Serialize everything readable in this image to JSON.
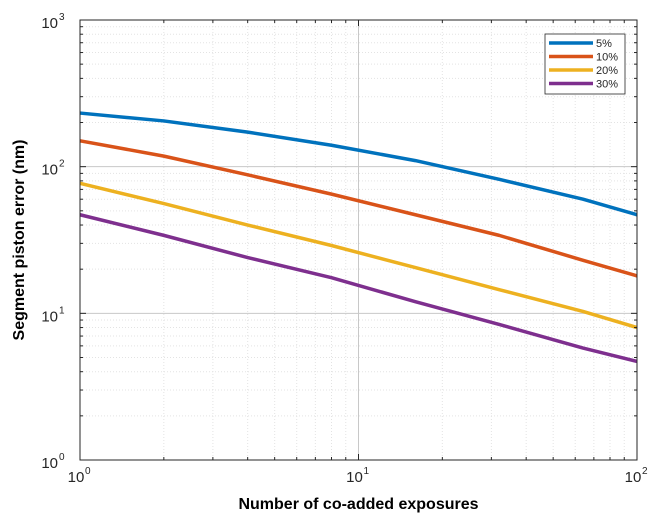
{
  "chart_data": {
    "type": "line",
    "title": "",
    "xlabel": "Number of co-added exposures",
    "ylabel": "Segment piston error (nm)",
    "xscale": "log",
    "yscale": "log",
    "xlim": [
      1,
      100
    ],
    "ylim": [
      1,
      1000
    ],
    "grid": true,
    "legend_position": "top-right",
    "x_ticks": [
      {
        "value": 1,
        "base": "10",
        "exp": "0"
      },
      {
        "value": 10,
        "base": "10",
        "exp": "1"
      },
      {
        "value": 100,
        "base": "10",
        "exp": "2"
      }
    ],
    "y_ticks": [
      {
        "value": 1,
        "base": "10",
        "exp": "0"
      },
      {
        "value": 10,
        "base": "10",
        "exp": "1"
      },
      {
        "value": 100,
        "base": "10",
        "exp": "2"
      },
      {
        "value": 1000,
        "base": "10",
        "exp": "3"
      }
    ],
    "x": [
      1,
      2,
      4,
      8,
      16,
      32,
      64,
      100
    ],
    "series": [
      {
        "name": "5%",
        "color": "#0072BD",
        "values": [
          232,
          205,
          172,
          140,
          110,
          82,
          60,
          47
        ]
      },
      {
        "name": "10%",
        "color": "#D95319",
        "values": [
          150,
          118,
          88,
          65,
          47,
          34,
          23,
          18
        ]
      },
      {
        "name": "20%",
        "color": "#EDB120",
        "values": [
          77,
          56,
          40,
          29,
          20.5,
          14.5,
          10.3,
          8
        ]
      },
      {
        "name": "30%",
        "color": "#7E2F8E",
        "values": [
          47,
          34,
          24,
          17.5,
          12,
          8.4,
          5.8,
          4.7
        ]
      }
    ]
  }
}
